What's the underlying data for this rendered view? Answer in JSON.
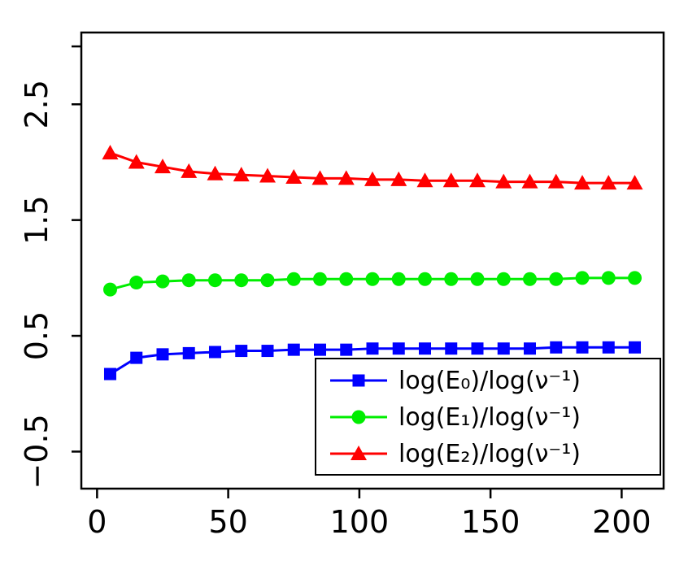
{
  "chart_data": {
    "type": "line",
    "title": "",
    "xlabel": "",
    "ylabel": "",
    "background": "#ffffff",
    "axis_color": "#000000",
    "grid": false,
    "xlim": [
      -6,
      216
    ],
    "ylim": [
      -0.82,
      3.12
    ],
    "x": [
      5,
      15,
      25,
      35,
      45,
      55,
      65,
      75,
      85,
      95,
      105,
      115,
      125,
      135,
      145,
      155,
      165,
      175,
      185,
      195,
      205
    ],
    "series": [
      {
        "name": "log(E₀)/log(ν⁻¹)",
        "color": "#0000ff",
        "marker": "square",
        "values": [
          0.17,
          0.31,
          0.34,
          0.35,
          0.36,
          0.37,
          0.37,
          0.38,
          0.38,
          0.38,
          0.39,
          0.39,
          0.39,
          0.39,
          0.39,
          0.39,
          0.39,
          0.4,
          0.4,
          0.4,
          0.4
        ]
      },
      {
        "name": "log(E₁)/log(ν⁻¹)",
        "color": "#00ee00",
        "marker": "circle",
        "values": [
          0.9,
          0.96,
          0.97,
          0.98,
          0.98,
          0.98,
          0.98,
          0.99,
          0.99,
          0.99,
          0.99,
          0.99,
          0.99,
          0.99,
          0.99,
          0.99,
          0.99,
          0.99,
          1.0,
          1.0,
          1.0
        ]
      },
      {
        "name": "log(E₂)/log(ν⁻¹)",
        "color": "#ff0000",
        "marker": "triangle",
        "values": [
          2.08,
          2.0,
          1.96,
          1.92,
          1.9,
          1.89,
          1.88,
          1.87,
          1.86,
          1.86,
          1.85,
          1.85,
          1.84,
          1.84,
          1.84,
          1.83,
          1.83,
          1.83,
          1.82,
          1.82,
          1.82
        ]
      }
    ],
    "x_ticks": [
      {
        "value": 0,
        "label": "0"
      },
      {
        "value": 50,
        "label": "50"
      },
      {
        "value": 100,
        "label": "100"
      },
      {
        "value": 150,
        "label": "150"
      },
      {
        "value": 200,
        "label": "200"
      }
    ],
    "y_ticks": [
      {
        "value": -0.5,
        "label": "−0.5"
      },
      {
        "value": 0.5,
        "label": "0.5"
      },
      {
        "value": 1.5,
        "label": "1.5"
      },
      {
        "value": 2.5,
        "label": "2.5"
      },
      {
        "value": 3.0,
        "label": ""
      }
    ],
    "legend": {
      "position": "bottom-right",
      "entries": [
        "log(E₀)/log(ν⁻¹)",
        "log(E₁)/log(ν⁻¹)",
        "log(E₂)/log(ν⁻¹)"
      ]
    }
  }
}
